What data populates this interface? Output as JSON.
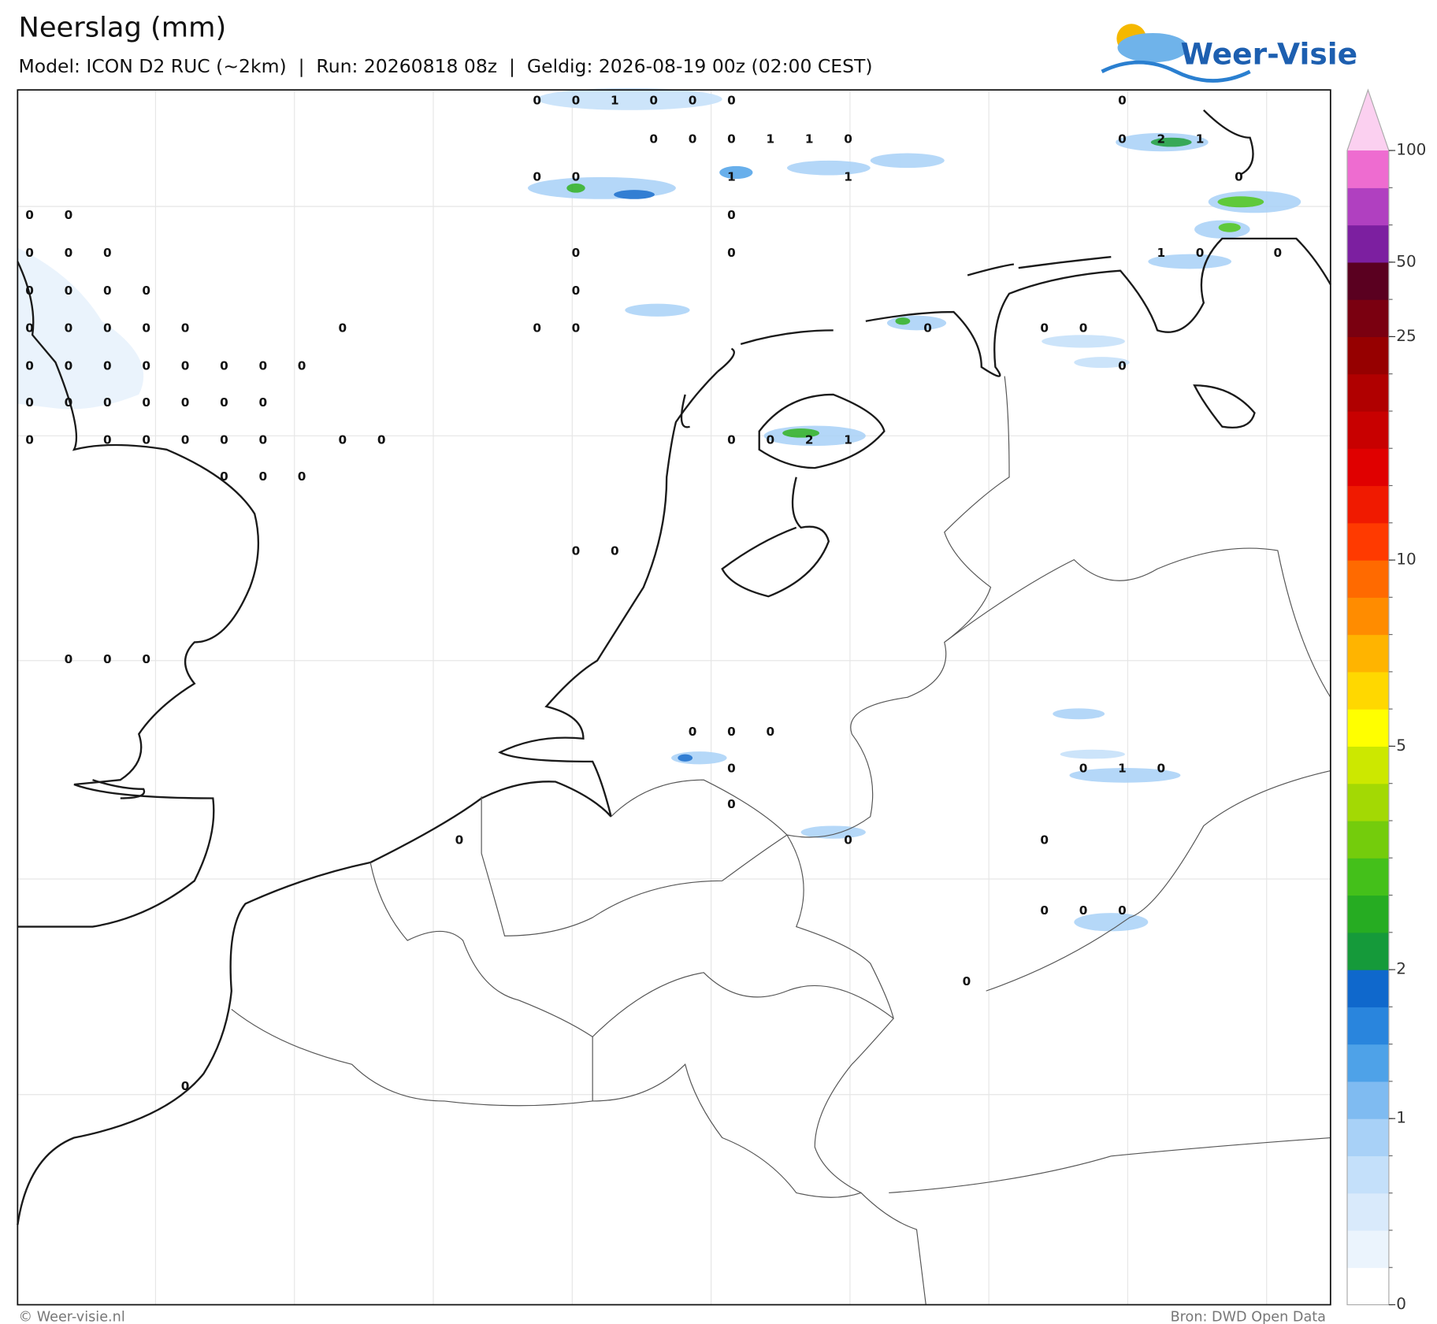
{
  "header": {
    "title": "Neerslag (mm)",
    "subtitle": "Model: ICON D2 RUC (~2km)  |  Run: 20260818 08z  |  Geldig: 2026-08-19 00z (02:00 CEST)",
    "logo": "Weer-Visie"
  },
  "points": [
    0,
    0,
    1,
    0,
    0,
    0,
    0,
    0,
    0,
    0,
    1,
    1,
    0,
    0,
    2,
    1,
    0,
    0,
    1,
    1,
    0,
    0,
    0,
    0,
    0,
    0,
    0,
    0,
    0,
    1,
    0,
    0,
    0,
    0,
    0,
    0,
    0,
    0,
    0,
    0,
    0,
    0,
    0,
    0,
    0,
    0,
    0,
    0,
    0,
    0,
    0,
    0,
    0,
    0,
    0,
    0,
    0,
    0,
    0,
    0,
    0,
    0,
    0,
    0,
    0,
    0,
    0,
    0,
    0,
    0,
    0,
    0,
    0,
    0,
    2,
    1,
    0,
    0,
    0,
    0,
    0,
    0,
    0,
    0,
    0,
    0,
    0,
    0,
    0,
    1,
    0,
    0,
    0,
    0,
    0,
    0,
    0,
    0,
    0,
    0
  ],
  "colorbar": {
    "levels": [
      0,
      0.2,
      0.4,
      0.6,
      0.8,
      1,
      1.25,
      1.5,
      1.75,
      2,
      2.5,
      3,
      3.5,
      4,
      4.5,
      5,
      6,
      7,
      8,
      9,
      10,
      12.5,
      15,
      17.5,
      20,
      22.5,
      25,
      37.5,
      50,
      66,
      83,
      100
    ],
    "colors": [
      "#ffffff",
      "#ebf4fd",
      "#d9eafb",
      "#c4e0fa",
      "#a8d1f7",
      "#7fbbf1",
      "#4ea2e8",
      "#2985dd",
      "#0f68cc",
      "#159a3a",
      "#26ac22",
      "#44c01a",
      "#74cc0c",
      "#a3d904",
      "#cce800",
      "#ffff00",
      "#ffd800",
      "#ffb400",
      "#ff8c00",
      "#ff6a00",
      "#ff3a00",
      "#f01a00",
      "#e00000",
      "#c80000",
      "#b00000",
      "#960000",
      "#7a0010",
      "#5a0020",
      "#7c1fa0",
      "#b040c0",
      "#ee6cd0"
    ],
    "extend_color": "#fbd0f0",
    "ticks": [
      0,
      1,
      2,
      5,
      10,
      25,
      50,
      100
    ]
  },
  "footer": {
    "left": "© Weer-visie.nl",
    "right": "Bron: DWD Open Data"
  }
}
